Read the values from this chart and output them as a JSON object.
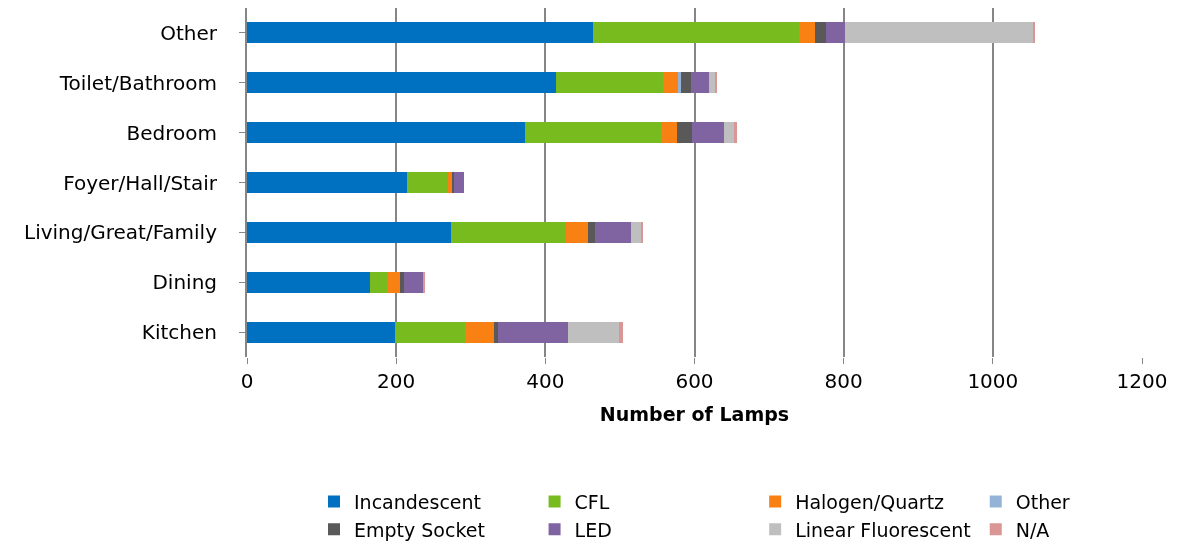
{
  "chart_data": {
    "type": "bar",
    "orientation": "horizontal",
    "stacked": true,
    "xlabel": "Number of Lamps",
    "categories": [
      "Other",
      "Toilet/Bathroom",
      "Bedroom",
      "Foyer/Hall/Stair",
      "Living/Great/Family",
      "Dining",
      "Kitchen"
    ],
    "series": [
      {
        "name": "Incandescent",
        "color": "#0070c0",
        "values": [
          464,
          414,
          373,
          215,
          273,
          165,
          199
        ]
      },
      {
        "name": "CFL",
        "color": "#77bb1f",
        "values": [
          276,
          144,
          182,
          55,
          155,
          23,
          93
        ]
      },
      {
        "name": "Halogen/Quartz",
        "color": "#f98012",
        "values": [
          22,
          20,
          21,
          5,
          29,
          17,
          39
        ]
      },
      {
        "name": "Other",
        "color": "#95b3d7",
        "values": [
          0,
          4,
          0,
          0,
          0,
          0,
          0
        ]
      },
      {
        "name": "Empty Socket",
        "color": "#595959",
        "values": [
          14,
          13,
          21,
          3,
          9,
          6,
          5
        ]
      },
      {
        "name": "LED",
        "color": "#8064a2",
        "values": [
          26,
          24,
          43,
          13,
          49,
          26,
          94
        ]
      },
      {
        "name": "Linear Fluorescent",
        "color": "#bfbfbf",
        "values": [
          253,
          9,
          13,
          0,
          13,
          0,
          69
        ]
      },
      {
        "name": "N/A",
        "color": "#d99694",
        "values": [
          1,
          1,
          4,
          0,
          3,
          2,
          5
        ]
      }
    ],
    "xlim": [
      0,
      1200
    ],
    "xticks": [
      0,
      200,
      400,
      600,
      800,
      1000,
      1200
    ],
    "grid": "x",
    "legend": "bottom"
  }
}
